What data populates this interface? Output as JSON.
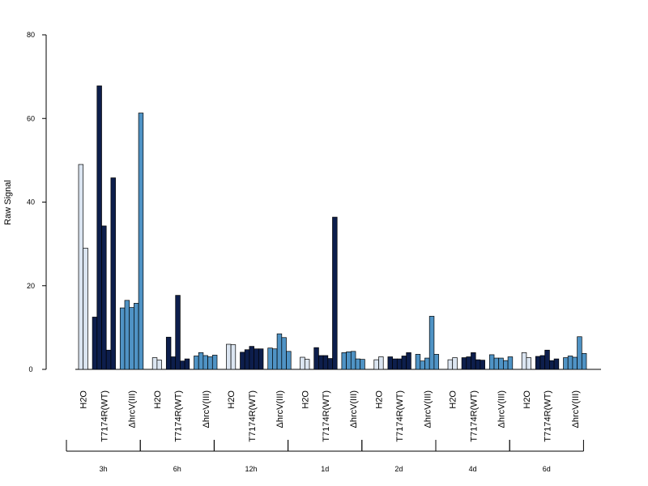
{
  "chart_data": {
    "type": "bar",
    "ylabel": "Raw Signal",
    "ylim": [
      0,
      80
    ],
    "yticks": [
      0,
      20,
      40,
      60,
      80
    ],
    "grid": false,
    "colors": {
      "H2O": "#dbe5f1",
      "T7174R(WT)": "#0d1e4c",
      "ΔhrcV(III)": "#4f93c5"
    },
    "timepoints": [
      "3h",
      "6h",
      "12h",
      "1d",
      "2d",
      "4d",
      "6d"
    ],
    "groups": [
      "H2O",
      "T7174R(WT)",
      "ΔhrcV(III)"
    ],
    "series": [
      {
        "group": "H2O",
        "time": "3h",
        "values": [
          49,
          29
        ]
      },
      {
        "group": "T7174R(WT)",
        "time": "3h",
        "values": [
          12.5,
          67.8,
          34.3,
          4.6,
          45.8
        ]
      },
      {
        "group": "ΔhrcV(III)",
        "time": "3h",
        "values": [
          14.7,
          16.5,
          14.8,
          15.8,
          61.3
        ]
      },
      {
        "group": "H2O",
        "time": "6h",
        "values": [
          2.8,
          2.2
        ]
      },
      {
        "group": "T7174R(WT)",
        "time": "6h",
        "values": [
          7.7,
          3.0,
          17.7,
          2.0,
          2.5
        ]
      },
      {
        "group": "ΔhrcV(III)",
        "time": "6h",
        "values": [
          3.2,
          4.0,
          3.3,
          3.0,
          3.4
        ]
      },
      {
        "group": "H2O",
        "time": "12h",
        "values": [
          6.0,
          5.9
        ]
      },
      {
        "group": "T7174R(WT)",
        "time": "12h",
        "values": [
          4.1,
          4.7,
          5.5,
          4.9,
          4.9
        ]
      },
      {
        "group": "ΔhrcV(III)",
        "time": "12h",
        "values": [
          5.1,
          4.9,
          8.5,
          7.6,
          4.3
        ]
      },
      {
        "group": "H2O",
        "time": "1d",
        "values": [
          2.9,
          2.4
        ]
      },
      {
        "group": "T7174R(WT)",
        "time": "1d",
        "values": [
          5.2,
          3.3,
          3.3,
          2.6,
          36.4
        ]
      },
      {
        "group": "ΔhrcV(III)",
        "time": "1d",
        "values": [
          4.0,
          4.2,
          4.3,
          2.5,
          2.4
        ]
      },
      {
        "group": "H2O",
        "time": "2d",
        "values": [
          2.3,
          3.0
        ]
      },
      {
        "group": "T7174R(WT)",
        "time": "2d",
        "values": [
          3.0,
          2.5,
          2.5,
          3.2,
          4.0
        ]
      },
      {
        "group": "ΔhrcV(III)",
        "time": "2d",
        "values": [
          3.6,
          2.0,
          2.7,
          12.7,
          3.6
        ]
      },
      {
        "group": "H2O",
        "time": "4d",
        "values": [
          2.3,
          2.8
        ]
      },
      {
        "group": "T7174R(WT)",
        "time": "4d",
        "values": [
          2.8,
          3.0,
          4.0,
          2.3,
          2.2
        ]
      },
      {
        "group": "ΔhrcV(III)",
        "time": "4d",
        "values": [
          3.5,
          2.7,
          2.7,
          2.1,
          3.0
        ]
      },
      {
        "group": "H2O",
        "time": "6d",
        "values": [
          4.0,
          2.8
        ]
      },
      {
        "group": "T7174R(WT)",
        "time": "6d",
        "values": [
          3.1,
          3.3,
          4.6,
          2.1,
          2.5
        ]
      },
      {
        "group": "ΔhrcV(III)",
        "time": "6d",
        "values": [
          2.8,
          3.2,
          2.9,
          7.8,
          3.8
        ]
      }
    ]
  }
}
